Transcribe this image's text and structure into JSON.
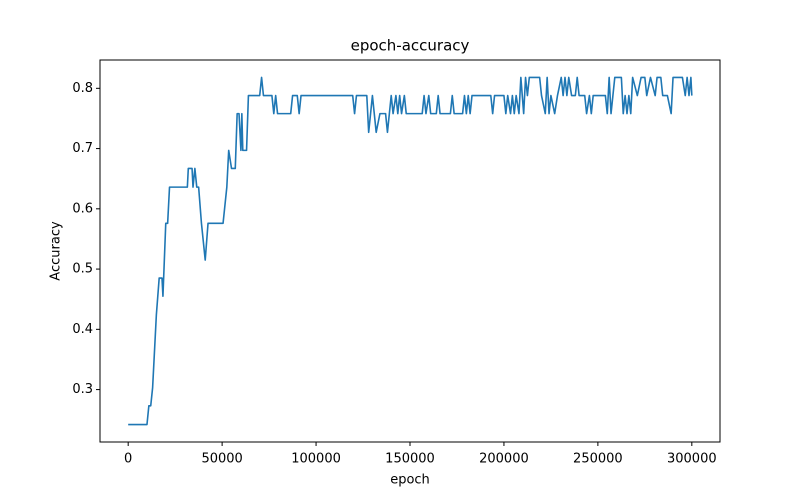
{
  "chart_data": {
    "type": "line",
    "title": "epoch-accuracy",
    "x_label": "epoch",
    "y_label": "Accuracy",
    "xlim": [
      -15000,
      315000
    ],
    "ylim": [
      0.213,
      0.847
    ],
    "xticks": [
      0,
      50000,
      100000,
      150000,
      200000,
      250000,
      300000
    ],
    "yticks": [
      0.3,
      0.4,
      0.5,
      0.6,
      0.7,
      0.8
    ],
    "series": [
      {
        "name": "accuracy",
        "color": "#1f77b4",
        "x": [
          0,
          10000,
          11000,
          12000,
          13000,
          15000,
          16500,
          18000,
          18500,
          20000,
          21000,
          22000,
          31500,
          32000,
          34000,
          34500,
          35500,
          36500,
          37500,
          39000,
          41000,
          42500,
          50500,
          52500,
          53500,
          55000,
          57000,
          58000,
          59000,
          60000,
          60500,
          61000,
          63000,
          64000,
          70000,
          71000,
          72000,
          76500,
          77500,
          78500,
          79500,
          86500,
          87500,
          90000,
          91000,
          92000,
          119500,
          120500,
          121500,
          127000,
          128000,
          130000,
          132000,
          134000,
          137000,
          138000,
          140000,
          141000,
          142500,
          143500,
          144500,
          145500,
          147000,
          148000,
          156500,
          157500,
          158500,
          160000,
          161000,
          164000,
          165000,
          166000,
          171500,
          172500,
          173500,
          178000,
          179000,
          180000,
          181000,
          182000,
          183000,
          193000,
          194000,
          195000,
          200000,
          201000,
          202000,
          203500,
          204500,
          205500,
          206500,
          208000,
          209000,
          210500,
          211500,
          212500,
          213500,
          219000,
          220000,
          222000,
          223000,
          224000,
          225000,
          227000,
          228500,
          230500,
          231500,
          232500,
          233500,
          234500,
          236000,
          238000,
          239000,
          240000,
          243000,
          244000,
          245500,
          246500,
          247500,
          254000,
          255000,
          256000,
          257000,
          258000,
          259000,
          262500,
          263500,
          264500,
          265500,
          266500,
          267500,
          268500,
          271000,
          273000,
          275000,
          276000,
          278000,
          280500,
          281500,
          283500,
          284500,
          287000,
          289000,
          290000,
          295000,
          296500,
          297500,
          298500,
          299500,
          300000
        ],
        "values": [
          0.242,
          0.242,
          0.273,
          0.273,
          0.303,
          0.424,
          0.485,
          0.485,
          0.455,
          0.576,
          0.576,
          0.636,
          0.636,
          0.667,
          0.667,
          0.636,
          0.667,
          0.636,
          0.636,
          0.576,
          0.515,
          0.576,
          0.576,
          0.636,
          0.697,
          0.667,
          0.667,
          0.758,
          0.758,
          0.697,
          0.758,
          0.697,
          0.697,
          0.788,
          0.788,
          0.818,
          0.788,
          0.788,
          0.758,
          0.788,
          0.758,
          0.758,
          0.788,
          0.788,
          0.758,
          0.788,
          0.788,
          0.758,
          0.788,
          0.788,
          0.727,
          0.788,
          0.727,
          0.758,
          0.758,
          0.727,
          0.788,
          0.758,
          0.788,
          0.758,
          0.788,
          0.758,
          0.788,
          0.758,
          0.758,
          0.788,
          0.758,
          0.788,
          0.758,
          0.758,
          0.788,
          0.758,
          0.758,
          0.788,
          0.758,
          0.758,
          0.788,
          0.758,
          0.788,
          0.758,
          0.788,
          0.788,
          0.758,
          0.788,
          0.788,
          0.758,
          0.788,
          0.758,
          0.788,
          0.758,
          0.788,
          0.758,
          0.818,
          0.758,
          0.818,
          0.788,
          0.818,
          0.818,
          0.788,
          0.758,
          0.818,
          0.758,
          0.788,
          0.758,
          0.788,
          0.818,
          0.788,
          0.818,
          0.788,
          0.818,
          0.788,
          0.788,
          0.818,
          0.788,
          0.788,
          0.758,
          0.788,
          0.758,
          0.788,
          0.788,
          0.758,
          0.818,
          0.758,
          0.788,
          0.818,
          0.818,
          0.758,
          0.788,
          0.758,
          0.788,
          0.758,
          0.818,
          0.788,
          0.818,
          0.818,
          0.788,
          0.818,
          0.788,
          0.818,
          0.818,
          0.788,
          0.788,
          0.758,
          0.818,
          0.818,
          0.788,
          0.818,
          0.788,
          0.818,
          0.788
        ]
      }
    ]
  }
}
